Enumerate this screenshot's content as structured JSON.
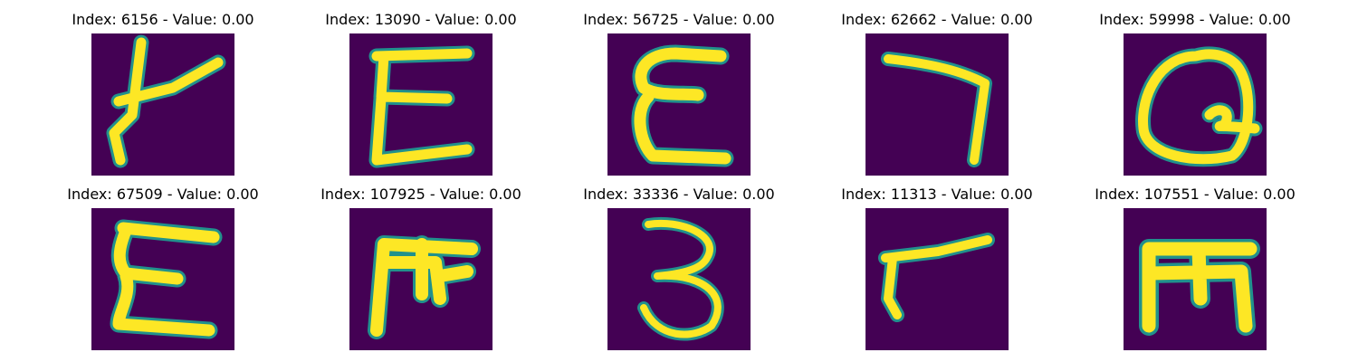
{
  "panels": [
    {
      "title": "Index: 6156 - Value: 0.00",
      "glyph": "hook-stroke"
    },
    {
      "title": "Index: 13090 - Value: 0.00",
      "glyph": "epsilon-E"
    },
    {
      "title": "Index: 56725 - Value: 0.00",
      "glyph": "epsilon-E"
    },
    {
      "title": "Index: 62662 - Value: 0.00",
      "glyph": "seven"
    },
    {
      "title": "Index: 59998 - Value: 0.00",
      "glyph": "loop-Q"
    },
    {
      "title": "Index: 67509 - Value: 0.00",
      "glyph": "epsilon-E"
    },
    {
      "title": "Index: 107925 - Value: 0.00",
      "glyph": "rotated-E"
    },
    {
      "title": "Index: 33336 - Value: 0.00",
      "glyph": "three"
    },
    {
      "title": "Index: 11313 - Value: 0.00",
      "glyph": "hook-stroke"
    },
    {
      "title": "Index: 107551 - Value: 0.00",
      "glyph": "rotated-E"
    }
  ],
  "colors": {
    "background": "#440154",
    "stroke": "#fde725",
    "edge": "#21918c"
  }
}
